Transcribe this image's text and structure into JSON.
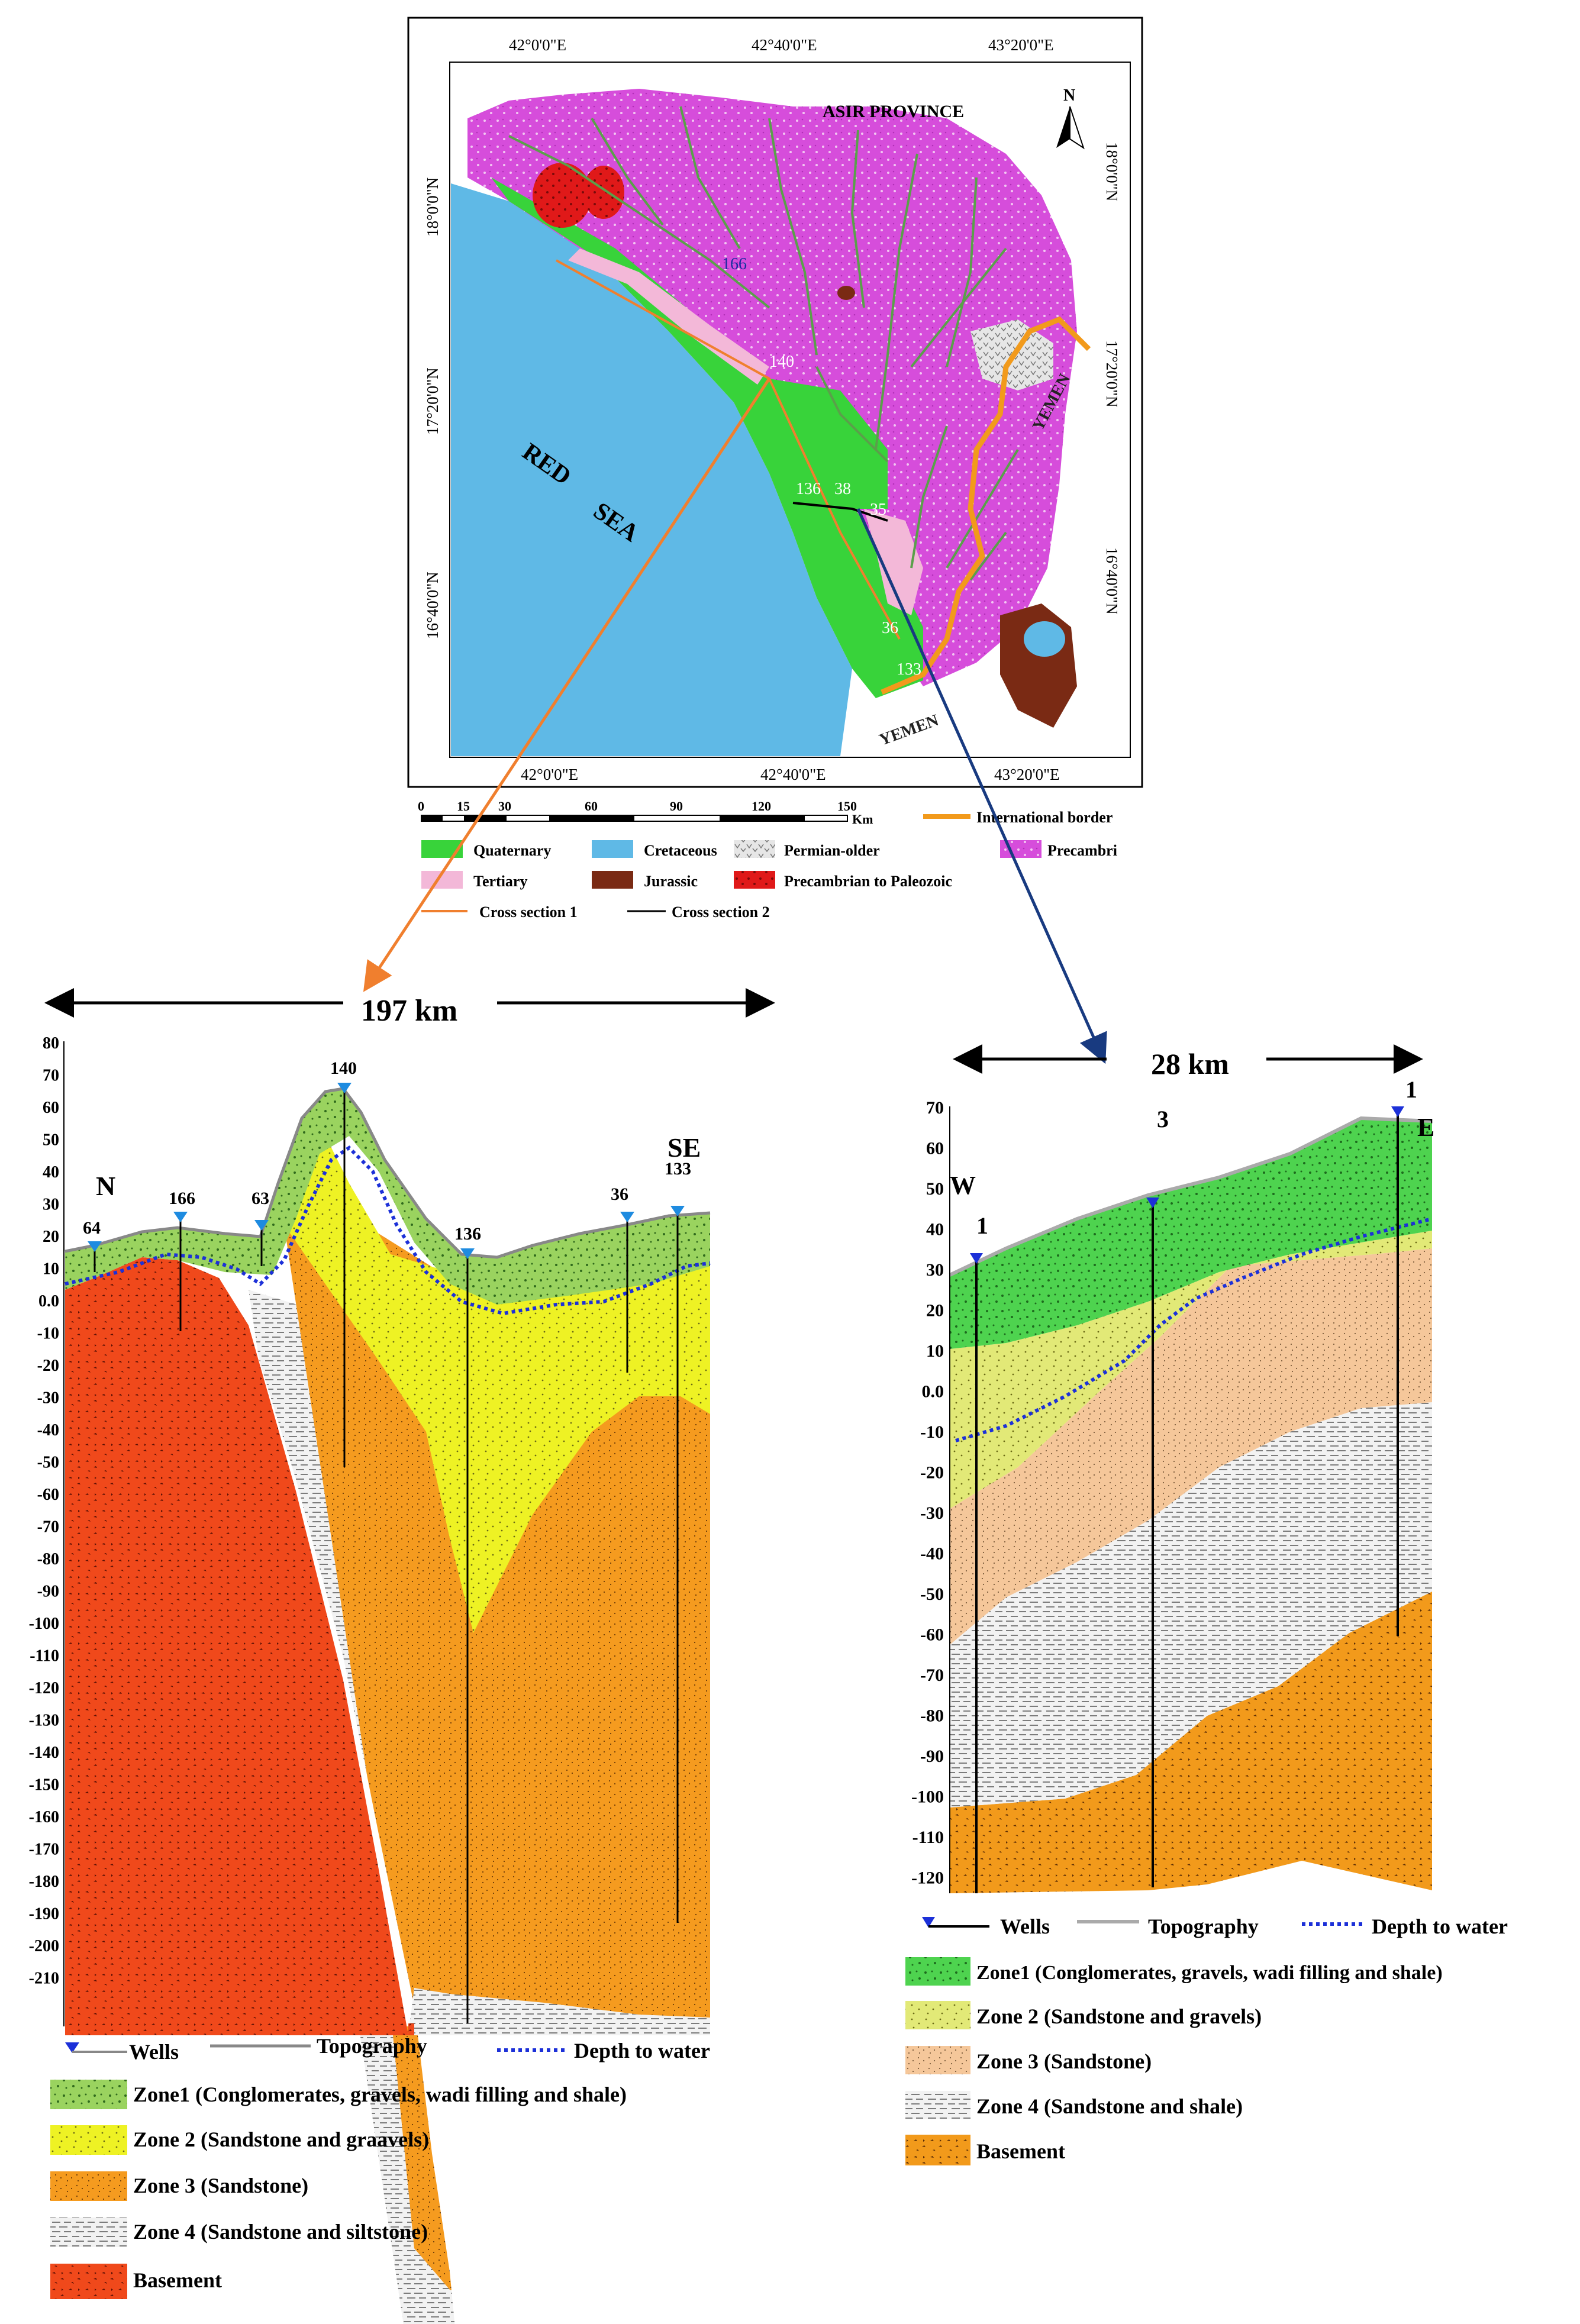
{
  "map": {
    "province": "ASIR PROVINCE",
    "sea_word1": "RED",
    "sea_word2": "SEA",
    "yemen_1": "YEMEN",
    "yemen_2": "YEMEN",
    "north": "N",
    "top_ticks": [
      "42°0'0\"E",
      "42°40'0\"E",
      "43°20'0\"E"
    ],
    "bottom_ticks": [
      "42°0'0\"E",
      "42°40'0\"E",
      "43°20'0\"E"
    ],
    "left_ticks": [
      "18°0'0\"N",
      "17°20'0\"N",
      "16°40'0\"N"
    ],
    "right_ticks": [
      "18°0'0\"N",
      "17°20'0\"N",
      "16°40'0\"N"
    ],
    "scale_ticks": [
      "0",
      "15",
      "30",
      "60",
      "90",
      "120",
      "150"
    ],
    "scale_unit": "Km",
    "well_labels": [
      "166",
      "140",
      "136",
      "38",
      "35",
      "36",
      "133"
    ],
    "legend": {
      "quaternary": "Quaternary",
      "cretaceous": "Cretaceous",
      "permian": "Permian-older",
      "precambrian": "Precambri",
      "tertiary": "Tertiary",
      "jurassic": "Jurassic",
      "precamb_paleo": "Precambrian to Paleozoic",
      "border": "International border",
      "cs1": "Cross section 1",
      "cs2": "Cross section 2"
    },
    "colors": {
      "sea": "#5fb9e6",
      "quaternary": "#38d33a",
      "precambrian": "#d64ddb",
      "tertiary": "#f3b8d8",
      "jurassic": "#7a2a14",
      "red": "#e01919",
      "border": "#f29a1b",
      "wadi": "#5aa04a"
    }
  },
  "section1": {
    "length": "197 km",
    "north_label": "N",
    "se_label": "SE",
    "y_ticks": [
      "80",
      "70",
      "60",
      "50",
      "40",
      "30",
      "20",
      "10",
      "0.0",
      "-10",
      "-20",
      "-30",
      "-40",
      "-50",
      "-60",
      "-70",
      "-80",
      "-90",
      "-100",
      "-110",
      "-120",
      "-130",
      "-140",
      "-150",
      "-160",
      "-170",
      "-180",
      "-190",
      "-200",
      "-210"
    ],
    "wells": [
      "64",
      "166",
      "63",
      "140",
      "136",
      "36",
      "133"
    ],
    "legend": {
      "wells": "Wells",
      "topography": "Topography",
      "depth": "Depth to water",
      "zone1": "Zone1 (Conglomerates, gravels, wadi filling and shale)",
      "zone2": "Zone 2 (Sandstone and graavels)",
      "zone3": "Zone 3 (Sandstone)",
      "zone4": "Zone 4 (Sandstone and siltstone)",
      "basement": "Basement"
    }
  },
  "section2": {
    "length": "28 km",
    "w_label": "W",
    "e_label": "E",
    "y_ticks": [
      "70",
      "60",
      "50",
      "40",
      "30",
      "20",
      "10",
      "0.0",
      "-10",
      "-20",
      "-30",
      "-40",
      "-50",
      "-60",
      "-70",
      "-80",
      "-90",
      "-100",
      "-110",
      "-120"
    ],
    "wells": [
      "1",
      "3",
      "1"
    ],
    "legend": {
      "wells": "Wells",
      "topography": "Topography",
      "depth": "Depth to water",
      "zone1": "Zone1 (Conglomerates, gravels, wadi filling and shale)",
      "zone2": "Zone 2 (Sandstone and gravels)",
      "zone3": "Zone 3 (Sandstone)",
      "zone4": "Zone 4 (Sandstone and shale)",
      "basement": "Basement"
    }
  }
}
